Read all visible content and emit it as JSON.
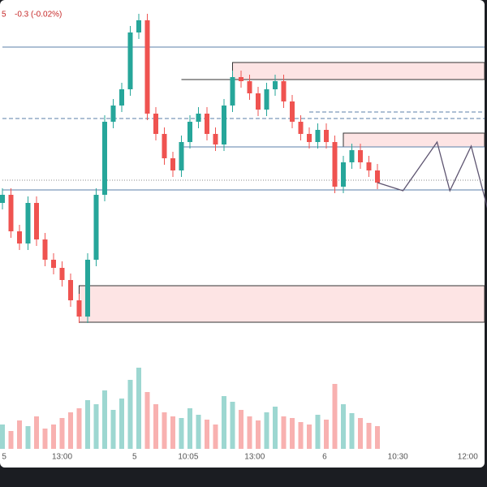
{
  "chart_data": {
    "type": "candlestick",
    "header": {
      "symbol_tail": "5",
      "change": "-0.3 (-0.02%)"
    },
    "open": [
      150,
      160,
      115,
      100,
      150,
      105,
      80,
      70,
      55,
      30,
      10,
      80,
      160,
      250,
      270,
      290,
      360,
      375,
      260,
      235,
      205,
      190,
      225,
      250,
      260,
      235,
      222,
      270,
      305,
      300,
      285,
      265,
      290,
      300,
      275,
      250,
      235,
      225,
      240,
      225,
      170,
      200,
      215,
      200,
      190
    ],
    "high": [
      168,
      168,
      123,
      158,
      158,
      113,
      88,
      78,
      63,
      38,
      88,
      168,
      258,
      278,
      298,
      368,
      383,
      383,
      268,
      243,
      213,
      233,
      258,
      268,
      268,
      243,
      278,
      313,
      313,
      308,
      293,
      298,
      308,
      308,
      283,
      258,
      243,
      248,
      248,
      233,
      208,
      223,
      223,
      208,
      198
    ],
    "low": [
      142,
      107,
      92,
      92,
      97,
      72,
      62,
      47,
      22,
      2,
      2,
      72,
      152,
      242,
      262,
      282,
      352,
      252,
      227,
      197,
      182,
      182,
      217,
      242,
      227,
      214,
      214,
      262,
      292,
      277,
      257,
      257,
      282,
      267,
      242,
      227,
      217,
      217,
      217,
      162,
      162,
      192,
      192,
      182,
      167
    ],
    "close": [
      160,
      115,
      100,
      150,
      105,
      80,
      70,
      55,
      30,
      10,
      80,
      160,
      250,
      270,
      290,
      360,
      375,
      260,
      235,
      205,
      190,
      225,
      250,
      260,
      235,
      222,
      270,
      305,
      300,
      285,
      265,
      290,
      300,
      275,
      250,
      235,
      225,
      240,
      225,
      170,
      200,
      215,
      200,
      190,
      175
    ],
    "volume": [
      30,
      22,
      35,
      28,
      40,
      25,
      30,
      38,
      45,
      50,
      60,
      55,
      72,
      48,
      62,
      85,
      100,
      70,
      55,
      45,
      40,
      38,
      50,
      42,
      36,
      30,
      65,
      58,
      48,
      40,
      35,
      45,
      52,
      40,
      38,
      33,
      30,
      42,
      36,
      80,
      55,
      44,
      38,
      32,
      28
    ],
    "ylim": [
      0,
      385
    ],
    "vlim": [
      0,
      125
    ],
    "up_color": "#26a69a",
    "down_color": "#ef5350",
    "xticks": [
      {
        "value": 0.2,
        "label": "5"
      },
      {
        "value": 7,
        "label": "13:00"
      },
      {
        "value": 15.5,
        "label": "5"
      },
      {
        "value": 21.8,
        "label": "10:05"
      },
      {
        "value": 29.6,
        "label": "13:00"
      },
      {
        "value": 37.8,
        "label": "6"
      },
      {
        "value": 46.4,
        "label": "10:30"
      },
      {
        "value": 54.6,
        "label": "12:00"
      }
    ],
    "levels": [
      {
        "value": 342,
        "start": 0,
        "color": "#5b7fa8",
        "style": "solid"
      },
      {
        "value": 302,
        "start": 21,
        "color": "#333333",
        "style": "solid"
      },
      {
        "value": 262,
        "start": 36,
        "color": "#5b7fa8",
        "style": "dashed"
      },
      {
        "value": 254,
        "start": 0,
        "color": "#5b7fa8",
        "style": "dashed"
      },
      {
        "value": 219,
        "start": 21,
        "color": "#5b7fa8",
        "style": "solid"
      },
      {
        "value": 178,
        "start": 0,
        "color": "#888888",
        "style": "dotted"
      },
      {
        "value": 166,
        "start": 0,
        "color": "#5b7fa8",
        "style": "solid"
      }
    ],
    "zones": [
      {
        "low": 302,
        "high": 323,
        "start": 27
      },
      {
        "low": 219,
        "high": 236,
        "start": 40
      },
      {
        "low": 3,
        "high": 48,
        "start": 9
      }
    ],
    "zone_fill": "#fde4e4",
    "projection": {
      "x": [
        44,
        47,
        51,
        52.5,
        55,
        57
      ],
      "values": [
        175,
        165,
        225,
        165,
        220,
        140
      ],
      "color": "#5d5470"
    }
  }
}
